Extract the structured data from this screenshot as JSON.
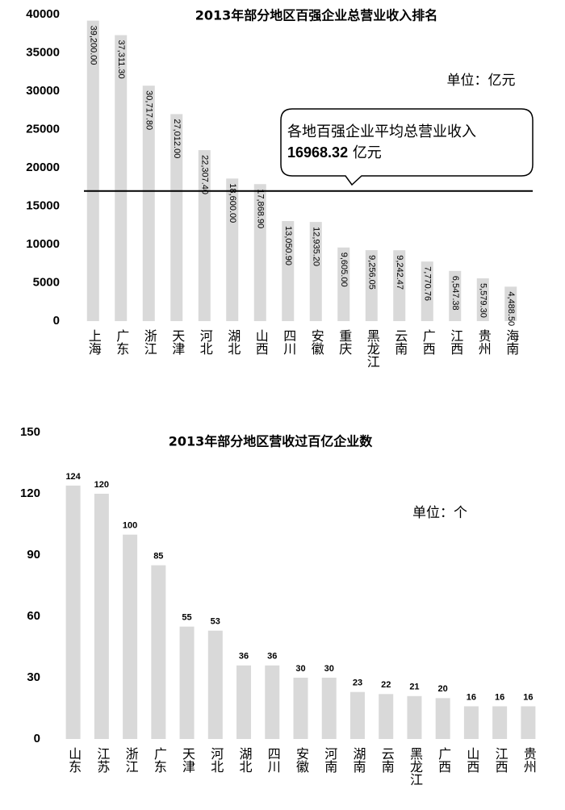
{
  "chart_data": [
    {
      "type": "bar",
      "title": "2013年部分地区百强企业总营业收入排名",
      "unit": "单位：亿元",
      "categories": [
        "上海",
        "广东",
        "浙江",
        "天津",
        "河北",
        "湖北",
        "山西",
        "四川",
        "安徽",
        "重庆",
        "黑龙江",
        "云南",
        "广西",
        "江西",
        "贵州",
        "海南"
      ],
      "values": [
        39200,
        37311.3,
        30717.8,
        27012,
        22307.4,
        18600,
        17868.9,
        13050.9,
        12935.2,
        9605,
        9256.05,
        9242.47,
        7770.76,
        6547.38,
        5579.3,
        4488.5
      ],
      "value_labels": [
        "39,200.00",
        "37,311.30",
        "30,717.80",
        "27,012.00",
        "22,307.40",
        "18,600.00",
        "17,868.90",
        "13,050.90",
        "12,935.20",
        "9,605.00",
        "9,256.05",
        "9,242.47",
        "7,770.76",
        "6,547.38",
        "5,579.30",
        "4,488.50"
      ],
      "color": "#d9d9d9",
      "ylim": [
        0,
        40000
      ],
      "yticks": [
        0,
        5000,
        10000,
        15000,
        20000,
        25000,
        30000,
        35000,
        40000
      ],
      "average": {
        "label": "各地百强企业平均总营业收入",
        "value": 16968.32,
        "unit": "亿元",
        "color": "#000000"
      }
    },
    {
      "type": "bar",
      "title": "2013年部分地区营收过百亿企业数",
      "unit": "单位：个",
      "categories": [
        "山东",
        "江苏",
        "浙江",
        "广东",
        "天津",
        "河北",
        "湖北",
        "四川",
        "安徽",
        "河南",
        "湖南",
        "云南",
        "黑龙江",
        "广西",
        "山西",
        "江西",
        "贵州"
      ],
      "values": [
        124,
        120,
        100,
        85,
        55,
        53,
        36,
        36,
        30,
        30,
        23,
        22,
        21,
        20,
        16,
        16,
        16
      ],
      "color": "#d9d9d9",
      "ylim": [
        0,
        150
      ],
      "yticks": [
        0,
        30,
        60,
        90,
        120,
        150
      ]
    }
  ]
}
